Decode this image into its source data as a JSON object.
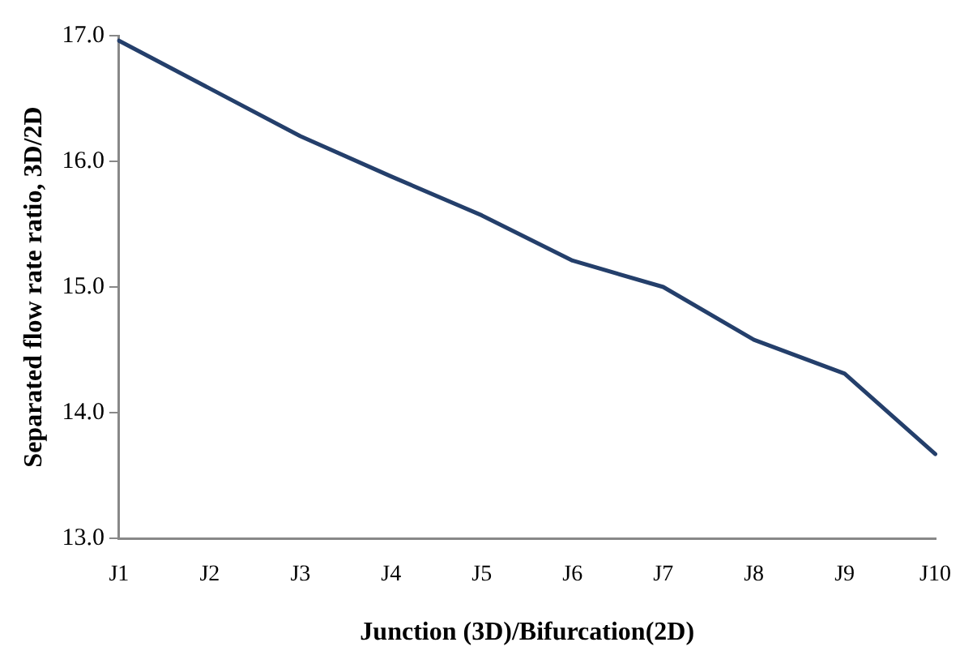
{
  "chart_data": {
    "type": "line",
    "xlabel": "Junction (3D)/Bifurcation(2D)",
    "ylabel": "Separated flow rate ratio, 3D/2D",
    "categories": [
      "J1",
      "J2",
      "J3",
      "J4",
      "J5",
      "J6",
      "J7",
      "J8",
      "J9",
      "J10"
    ],
    "series": [
      {
        "color": "#243f6b",
        "values": [
          16.96,
          16.58,
          16.2,
          15.88,
          15.57,
          15.21,
          15.0,
          14.58,
          14.31,
          13.67
        ]
      }
    ],
    "ylim": [
      13,
      17
    ],
    "yticks": [
      {
        "value": 13,
        "label": "13.0"
      },
      {
        "value": 14,
        "label": "14.0"
      },
      {
        "value": 15,
        "label": "15.0"
      },
      {
        "value": 16,
        "label": "16.0"
      },
      {
        "value": 17,
        "label": "17.0"
      }
    ],
    "grid": false,
    "legend": false,
    "marker": "none",
    "line_style": "solid"
  }
}
